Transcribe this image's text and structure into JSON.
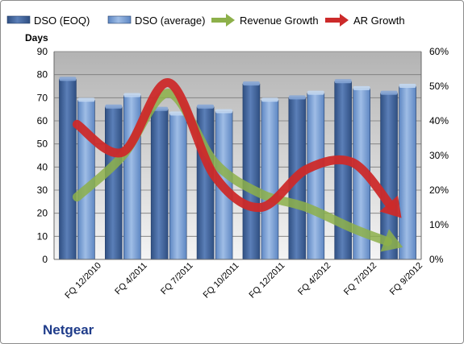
{
  "company_label": "Netgear",
  "chart_data": {
    "type": "bar",
    "categories": [
      "FQ 12/2010",
      "FQ 4/2011",
      "FQ 7/2011",
      "FQ 10/2011",
      "FQ 12/2011",
      "FQ 4/2012",
      "FQ 7/2012",
      "FQ 9/2012"
    ],
    "series": [
      {
        "name": "DSO (EOQ)",
        "kind": "bar",
        "axis": "left",
        "color": "#4a6ea8",
        "values": [
          78,
          66,
          65,
          66,
          76,
          70,
          77,
          72
        ]
      },
      {
        "name": "DSO (average)",
        "kind": "bar",
        "axis": "left",
        "color": "#7fa3d6",
        "values": [
          69,
          71,
          63,
          64,
          69,
          72,
          74,
          75
        ]
      },
      {
        "name": "Revenue Growth",
        "kind": "arrow",
        "axis": "right",
        "color": "#8db04a",
        "values": [
          0.18,
          0.3,
          0.48,
          0.28,
          0.19,
          0.15,
          0.09,
          0.04
        ]
      },
      {
        "name": "AR Growth",
        "kind": "arrow",
        "axis": "right",
        "color": "#cc2a2a",
        "values": [
          0.39,
          0.31,
          0.51,
          0.24,
          0.15,
          0.26,
          0.28,
          0.13
        ]
      }
    ],
    "ylabel": "Days",
    "ylim": [
      0,
      90
    ],
    "yticks": [
      "0",
      "10",
      "20",
      "30",
      "40",
      "50",
      "60",
      "70",
      "80",
      "90"
    ],
    "y2lim": [
      0,
      0.6
    ],
    "y2ticks": [
      "0%",
      "10%",
      "20%",
      "30%",
      "40%",
      "50%",
      "60%"
    ],
    "plot_background": "#c0c0c0",
    "legend_position": "top"
  }
}
